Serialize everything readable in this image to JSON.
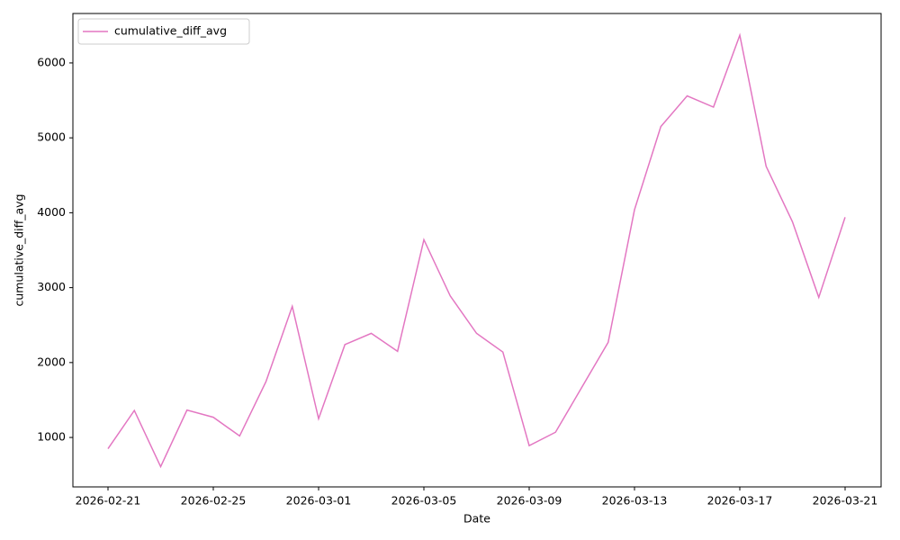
{
  "chart_data": {
    "type": "line",
    "x_label": "Date",
    "y_label": "cumulative_diff_avg",
    "x": [
      "2026-02-21",
      "2026-02-22",
      "2026-02-23",
      "2026-02-24",
      "2026-02-25",
      "2026-02-26",
      "2026-02-27",
      "2026-02-28",
      "2026-03-01",
      "2026-03-02",
      "2026-03-03",
      "2026-03-04",
      "2026-03-05",
      "2026-03-06",
      "2026-03-07",
      "2026-03-08",
      "2026-03-09",
      "2026-03-10",
      "2026-03-11",
      "2026-03-12",
      "2026-03-13",
      "2026-03-14",
      "2026-03-15",
      "2026-03-16",
      "2026-03-17",
      "2026-03-18",
      "2026-03-19",
      "2026-03-20",
      "2026-03-21"
    ],
    "series": [
      {
        "name": "cumulative_diff_avg",
        "color": "#e377c2",
        "values": [
          850,
          1360,
          610,
          1365,
          1270,
          1020,
          1745,
          2750,
          1250,
          2240,
          2390,
          2150,
          3640,
          2890,
          2390,
          2140,
          890,
          1070,
          1670,
          2270,
          4040,
          5150,
          5560,
          5410,
          6370,
          4620,
          3880,
          2870,
          3940
        ]
      }
    ],
    "xlim": [
      "2026-02-21",
      "2026-03-21"
    ],
    "xticks": [
      "2026-02-21",
      "2026-02-25",
      "2026-03-01",
      "2026-03-05",
      "2026-03-09",
      "2026-03-13",
      "2026-03-17",
      "2026-03-21"
    ],
    "ylim": [
      340,
      6660
    ],
    "yticks": [
      1000,
      2000,
      3000,
      4000,
      5000,
      6000
    ],
    "legend": "upper left",
    "grid": false
  }
}
